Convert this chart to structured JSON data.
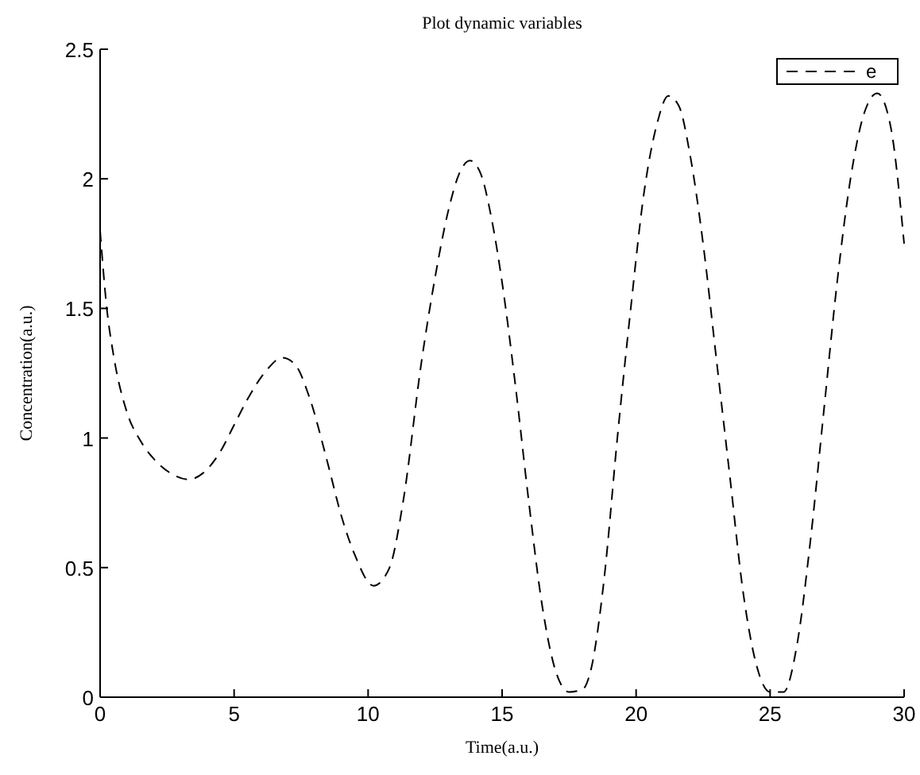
{
  "chart_data": {
    "type": "line",
    "title": "Plot dynamic variables",
    "xlabel": "Time(a.u.)",
    "ylabel": "Concentration(a.u.)",
    "x": [
      0,
      0.25,
      0.5,
      1,
      1.5,
      2,
      2.7,
      3.3,
      4,
      4.5,
      5,
      5.5,
      6.2,
      6.8,
      7.3,
      7.8,
      8.5,
      9,
      9.5,
      10.2,
      10.8,
      11.3,
      12,
      12.5,
      13,
      13.4,
      13.8,
      14.2,
      14.6,
      15,
      15.5,
      16,
      16.5,
      17,
      17.5,
      18,
      18.3,
      18.8,
      19.3,
      19.8,
      20.3,
      20.8,
      21.2,
      21.6,
      22,
      22.5,
      23,
      23.5,
      24,
      24.5,
      25,
      25.5,
      26,
      26.5,
      27,
      27.5,
      28,
      28.5,
      29,
      29.5,
      30
    ],
    "series": [
      {
        "name": "e",
        "color": "#000000",
        "line_style": "dashed",
        "values": [
          1.8,
          1.5,
          1.32,
          1.1,
          0.99,
          0.92,
          0.86,
          0.84,
          0.88,
          0.95,
          1.05,
          1.15,
          1.26,
          1.31,
          1.28,
          1.16,
          0.9,
          0.7,
          0.55,
          0.43,
          0.5,
          0.75,
          1.3,
          1.62,
          1.88,
          2.02,
          2.07,
          2.02,
          1.85,
          1.6,
          1.2,
          0.75,
          0.35,
          0.1,
          0.02,
          0.03,
          0.1,
          0.45,
          1.0,
          1.5,
          1.95,
          2.22,
          2.32,
          2.28,
          2.1,
          1.75,
          1.3,
          0.85,
          0.4,
          0.12,
          0.02,
          0.02,
          0.2,
          0.6,
          1.1,
          1.6,
          2.0,
          2.25,
          2.33,
          2.2,
          1.75
        ]
      }
    ],
    "xlim": [
      0,
      30
    ],
    "ylim": [
      0,
      2.5
    ],
    "xticks": [
      0,
      5,
      10,
      15,
      20,
      25,
      30
    ],
    "yticks": [
      0,
      0.5,
      1,
      1.5,
      2,
      2.5
    ],
    "grid": false,
    "legend": "top right",
    "marker": "none"
  }
}
